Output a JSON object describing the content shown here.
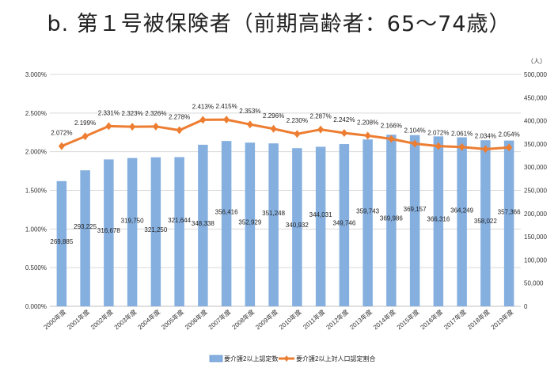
{
  "chart_data": {
    "type": "bar+line",
    "title": "b.  第１号被保険者（前期高齢者：65～74歳）",
    "right_unit": "（人）",
    "categories": [
      "2000年度",
      "2001年度",
      "2002年度",
      "2003年度",
      "2004年度",
      "2005年度",
      "2006年度",
      "2007年度",
      "2008年度",
      "2009年度",
      "2010年度",
      "2011年度",
      "2012年度",
      "2013年度",
      "2014年度",
      "2015年度",
      "2016年度",
      "2017年度",
      "2018年度",
      "2019年度"
    ],
    "series": [
      {
        "name": "要介護2以上認定数",
        "type": "bar",
        "axis": "right",
        "color": "#85afdf",
        "values": [
          269885,
          293225,
          316678,
          319750,
          321250,
          321644,
          348338,
          356416,
          352929,
          351248,
          340932,
          344031,
          349746,
          359743,
          369986,
          369157,
          366316,
          364249,
          358022,
          357366
        ],
        "labels": [
          "269,885",
          "293,225",
          "316,678",
          "319,750",
          "321,250",
          "321,644",
          "348,338",
          "356,416",
          "352,929",
          "351,248",
          "340,932",
          "344,031",
          "349,746",
          "359,743",
          "369,986",
          "369,157",
          "366,316",
          "364,249",
          "358,022",
          "357,366"
        ]
      },
      {
        "name": "要介護2以上対人口認定割合",
        "type": "line",
        "axis": "left",
        "color": "#ed7d31",
        "values": [
          2.072,
          2.199,
          2.331,
          2.323,
          2.326,
          2.278,
          2.413,
          2.415,
          2.353,
          2.296,
          2.23,
          2.287,
          2.242,
          2.208,
          2.166,
          2.104,
          2.072,
          2.061,
          2.034,
          2.054
        ],
        "labels": [
          "2.072%",
          "2.199%",
          "2.331%",
          "2.323%",
          "2.326%",
          "2.278%",
          "2.413%",
          "2.415%",
          "2.353%",
          "2.296%",
          "2.230%",
          "2.287%",
          "2.242%",
          "2.208%",
          "2.166%",
          "2.104%",
          "2.072%",
          "2.061%",
          "2.034%",
          "2.054%"
        ]
      }
    ],
    "left_ylim": [
      0,
      3
    ],
    "left_ticks": [
      "0.000%",
      "0.500%",
      "1.000%",
      "1.500%",
      "2.000%",
      "2.500%",
      "3.000%"
    ],
    "right_ylim": [
      0,
      500000
    ],
    "right_ticks": [
      "0",
      "50,000",
      "100,000",
      "150,000",
      "200,000",
      "250,000",
      "300,000",
      "350,000",
      "400,000",
      "450,000",
      "500,000"
    ],
    "grid": true,
    "legend_position": "bottom"
  }
}
